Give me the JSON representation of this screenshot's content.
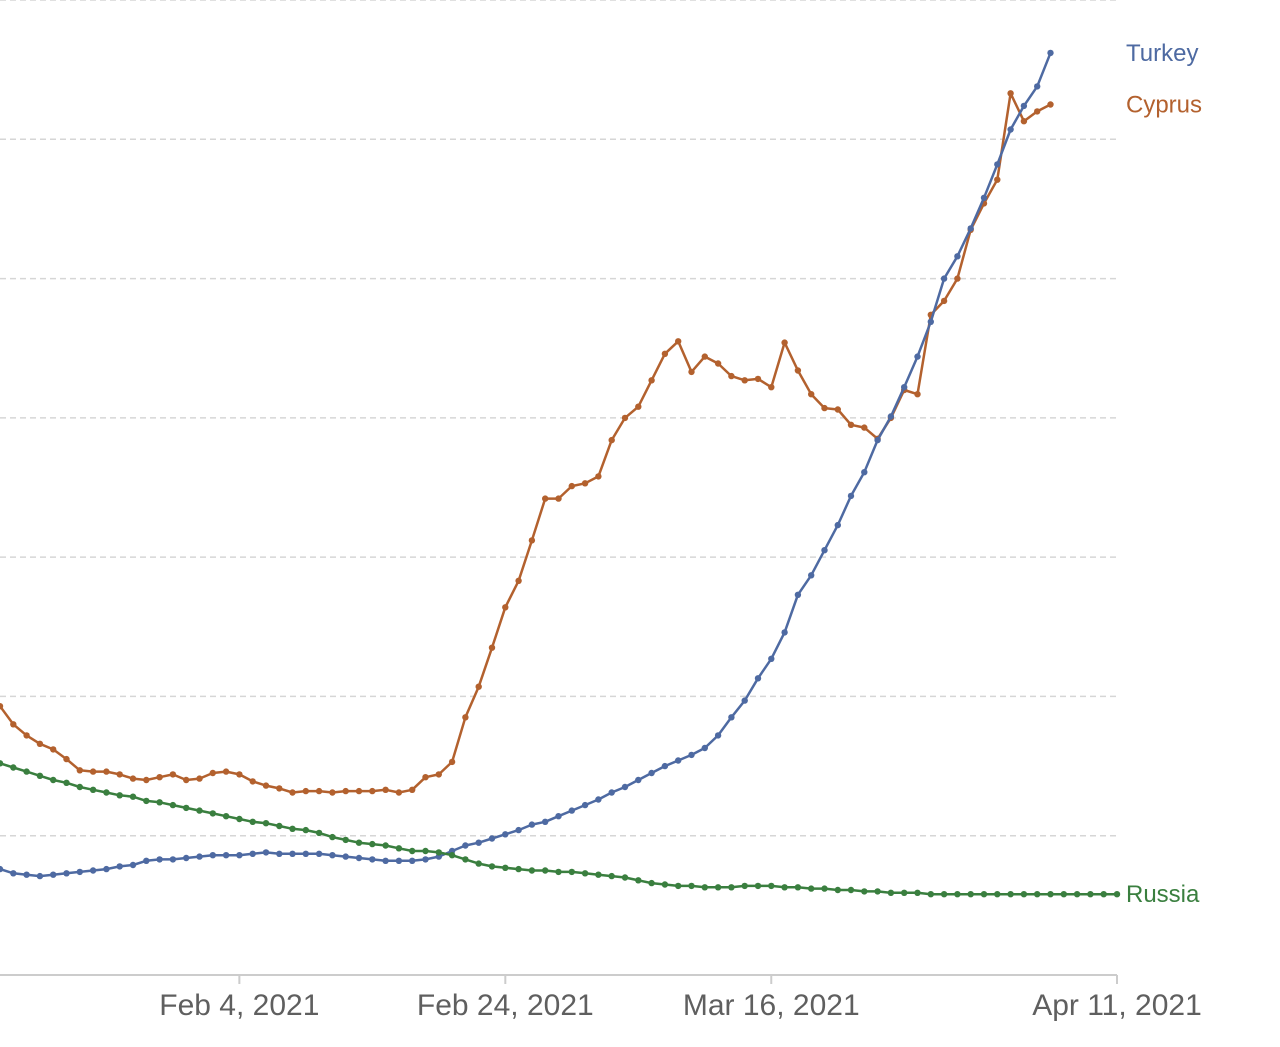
{
  "chart_data": {
    "type": "line",
    "title": "",
    "xlabel": "",
    "ylabel": "",
    "x_ticks": [
      {
        "date": "2021-02-04",
        "label": "Feb 4, 2021"
      },
      {
        "date": "2021-02-24",
        "label": "Feb 24, 2021"
      },
      {
        "date": "2021-03-16",
        "label": "Mar 16, 2021"
      },
      {
        "date": "2021-04-11",
        "label": "Apr 11, 2021"
      }
    ],
    "x_range": [
      "2021-01-17",
      "2021-04-11"
    ],
    "y_range": [
      0,
      7
    ],
    "y_gridlines": [
      1,
      2,
      3,
      4,
      5,
      6,
      7
    ],
    "grid": true,
    "legend": "line-end labels",
    "series": [
      {
        "name": "Cyprus",
        "color": "#b3612e",
        "start": "2021-01-17",
        "values": [
          1.93,
          1.8,
          1.72,
          1.66,
          1.62,
          1.55,
          1.47,
          1.46,
          1.46,
          1.44,
          1.41,
          1.4,
          1.42,
          1.44,
          1.4,
          1.41,
          1.45,
          1.46,
          1.44,
          1.39,
          1.36,
          1.34,
          1.31,
          1.32,
          1.32,
          1.31,
          1.32,
          1.32,
          1.32,
          1.33,
          1.31,
          1.33,
          1.42,
          1.44,
          1.53,
          1.85,
          2.07,
          2.35,
          2.64,
          2.83,
          3.12,
          3.42,
          3.42,
          3.51,
          3.53,
          3.58,
          3.84,
          4.0,
          4.08,
          4.27,
          4.46,
          4.55,
          4.33,
          4.44,
          4.39,
          4.3,
          4.27,
          4.28,
          4.22,
          4.54,
          4.34,
          4.17,
          4.07,
          4.06,
          3.95,
          3.93,
          3.85,
          4.0,
          4.2,
          4.17,
          4.74,
          4.84,
          5.0,
          5.35,
          5.54,
          5.71,
          6.33,
          6.13,
          6.2,
          6.25
        ]
      },
      {
        "name": "Turkey",
        "color": "#4e6aa2",
        "start": "2021-01-17",
        "values": [
          0.76,
          0.73,
          0.72,
          0.71,
          0.72,
          0.73,
          0.74,
          0.75,
          0.76,
          0.78,
          0.79,
          0.82,
          0.83,
          0.83,
          0.84,
          0.85,
          0.86,
          0.86,
          0.86,
          0.87,
          0.88,
          0.87,
          0.87,
          0.87,
          0.87,
          0.86,
          0.85,
          0.84,
          0.83,
          0.82,
          0.82,
          0.82,
          0.83,
          0.85,
          0.89,
          0.93,
          0.95,
          0.98,
          1.01,
          1.04,
          1.08,
          1.1,
          1.14,
          1.18,
          1.22,
          1.26,
          1.31,
          1.35,
          1.4,
          1.45,
          1.5,
          1.54,
          1.58,
          1.63,
          1.72,
          1.85,
          1.97,
          2.13,
          2.27,
          2.46,
          2.73,
          2.87,
          3.05,
          3.23,
          3.44,
          3.61,
          3.84,
          4.01,
          4.22,
          4.44,
          4.69,
          5.0,
          5.16,
          5.36,
          5.58,
          5.82,
          6.07,
          6.24,
          6.38,
          6.62
        ]
      },
      {
        "name": "Russia",
        "color": "#3a7f3f",
        "start": "2021-01-17",
        "values": [
          1.52,
          1.49,
          1.46,
          1.43,
          1.4,
          1.38,
          1.35,
          1.33,
          1.31,
          1.29,
          1.28,
          1.25,
          1.24,
          1.22,
          1.2,
          1.18,
          1.16,
          1.14,
          1.12,
          1.1,
          1.09,
          1.07,
          1.05,
          1.04,
          1.02,
          0.99,
          0.97,
          0.95,
          0.94,
          0.93,
          0.91,
          0.89,
          0.89,
          0.88,
          0.86,
          0.83,
          0.8,
          0.78,
          0.77,
          0.76,
          0.75,
          0.75,
          0.74,
          0.74,
          0.73,
          0.72,
          0.71,
          0.7,
          0.68,
          0.66,
          0.65,
          0.64,
          0.64,
          0.63,
          0.63,
          0.63,
          0.64,
          0.64,
          0.64,
          0.63,
          0.63,
          0.62,
          0.62,
          0.61,
          0.61,
          0.6,
          0.6,
          0.59,
          0.59,
          0.59,
          0.58,
          0.58,
          0.58,
          0.58,
          0.58,
          0.58,
          0.58,
          0.58,
          0.58,
          0.58,
          0.58,
          0.58,
          0.58,
          0.58,
          0.58
        ]
      }
    ]
  }
}
